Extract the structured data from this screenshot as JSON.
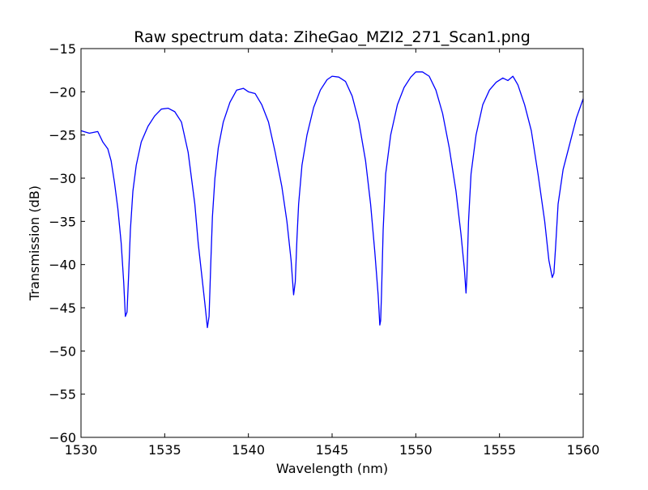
{
  "chart_data": {
    "type": "line",
    "title": "Raw spectrum data: ZiheGao_MZI2_271_Scan1.png",
    "xlabel": "Wavelength (nm)",
    "ylabel": "Transmission (dB)",
    "xlim": [
      1530,
      1560
    ],
    "ylim": [
      -60,
      -15
    ],
    "x_ticks": [
      1530,
      1535,
      1540,
      1545,
      1550,
      1555,
      1560
    ],
    "x_tick_labels": [
      "1530",
      "1535",
      "1540",
      "1545",
      "1550",
      "1555",
      "1560"
    ],
    "y_ticks": [
      -60,
      -55,
      -50,
      -45,
      -40,
      -35,
      -30,
      -25,
      -20,
      -15
    ],
    "y_tick_labels": [
      "−60",
      "−55",
      "−50",
      "−45",
      "−40",
      "−35",
      "−30",
      "−25",
      "−20",
      "−15"
    ],
    "grid": false,
    "legend": "none",
    "series": [
      {
        "color": "#0000ff",
        "x": [
          1530.0,
          1530.5,
          1531.0,
          1531.3,
          1531.6,
          1531.8,
          1532.0,
          1532.2,
          1532.4,
          1532.55,
          1532.65,
          1532.75,
          1532.85,
          1532.95,
          1533.1,
          1533.3,
          1533.6,
          1534.0,
          1534.4,
          1534.8,
          1535.2,
          1535.6,
          1536.0,
          1536.4,
          1536.8,
          1537.0,
          1537.2,
          1537.4,
          1537.55,
          1537.65,
          1537.75,
          1537.85,
          1538.0,
          1538.2,
          1538.5,
          1538.9,
          1539.3,
          1539.7,
          1540.0,
          1540.4,
          1540.8,
          1541.2,
          1541.6,
          1542.0,
          1542.3,
          1542.55,
          1542.7,
          1542.8,
          1542.9,
          1543.0,
          1543.2,
          1543.5,
          1543.9,
          1544.3,
          1544.7,
          1545.0,
          1545.4,
          1545.8,
          1546.2,
          1546.6,
          1547.0,
          1547.3,
          1547.55,
          1547.75,
          1547.85,
          1547.9,
          1547.95,
          1548.05,
          1548.2,
          1548.5,
          1548.9,
          1549.3,
          1549.7,
          1550.0,
          1550.4,
          1550.8,
          1551.2,
          1551.6,
          1552.0,
          1552.4,
          1552.7,
          1552.9,
          1553.0,
          1553.05,
          1553.15,
          1553.3,
          1553.6,
          1554.0,
          1554.4,
          1554.8,
          1555.2,
          1555.5,
          1555.8,
          1556.1,
          1556.5,
          1556.9,
          1557.3,
          1557.7,
          1557.95,
          1558.15,
          1558.25,
          1558.35,
          1558.5,
          1558.8,
          1559.2,
          1559.6,
          1560.0
        ],
        "y": [
          -24.5,
          -24.8,
          -24.6,
          -25.8,
          -26.6,
          -28.0,
          -30.5,
          -33.5,
          -37.5,
          -42.0,
          -46.0,
          -45.5,
          -41.0,
          -36.0,
          -31.5,
          -28.5,
          -25.8,
          -24.0,
          -22.8,
          -22.0,
          -21.9,
          -22.3,
          -23.5,
          -27.0,
          -33.0,
          -37.5,
          -41.0,
          -44.5,
          -47.3,
          -46.0,
          -40.0,
          -34.5,
          -30.0,
          -26.5,
          -23.5,
          -21.2,
          -19.8,
          -19.6,
          -20.0,
          -20.2,
          -21.5,
          -23.5,
          -27.0,
          -31.0,
          -35.0,
          -39.5,
          -43.5,
          -42.0,
          -37.0,
          -33.0,
          -28.5,
          -25.0,
          -21.8,
          -19.8,
          -18.6,
          -18.2,
          -18.3,
          -18.8,
          -20.5,
          -23.5,
          -28.0,
          -33.0,
          -38.5,
          -43.5,
          -47.0,
          -46.5,
          -43.5,
          -36.0,
          -29.5,
          -25.0,
          -21.5,
          -19.5,
          -18.3,
          -17.7,
          -17.7,
          -18.2,
          -19.8,
          -22.5,
          -26.5,
          -31.5,
          -36.5,
          -40.5,
          -43.3,
          -41.5,
          -35.0,
          -29.5,
          -25.0,
          -21.5,
          -19.8,
          -18.9,
          -18.4,
          -18.7,
          -18.2,
          -19.2,
          -21.5,
          -24.5,
          -29.5,
          -35.0,
          -39.5,
          -41.5,
          -41.0,
          -38.0,
          -33.0,
          -29.0,
          -26.0,
          -23.0,
          -20.8
        ]
      }
    ]
  }
}
